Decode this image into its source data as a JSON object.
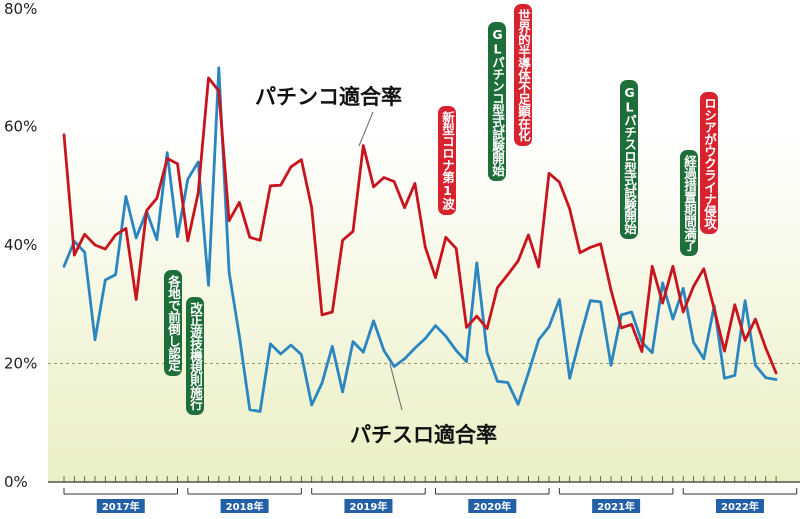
{
  "colors": {
    "pachinko": "#c8141e",
    "pachislot": "#2a86c0",
    "green_note": "#1e6e3a",
    "red_note": "#d8232f",
    "year_band": "#2460a8",
    "bg_top": "#ffffff",
    "bg_bottom": "#ecefc8"
  },
  "chart_data": {
    "type": "line",
    "ylim": [
      0,
      80
    ],
    "yticks": [
      "0%",
      "20%",
      "40%",
      "60%",
      "80%"
    ],
    "ytick_values": [
      0,
      20,
      40,
      60,
      80
    ],
    "reference_line": 20,
    "years": [
      "2017年",
      "2018年",
      "2019年",
      "2020年",
      "2021年",
      "2022年"
    ],
    "months_start": "2017-01",
    "series": [
      {
        "name": "パチンコ適合率",
        "color": "#c8141e",
        "values": [
          58.6,
          38.3,
          41.8,
          40.0,
          39.3,
          41.7,
          42.8,
          30.8,
          45.8,
          47.9,
          54.6,
          53.7,
          40.7,
          48.8,
          68.2,
          66.0,
          44.1,
          47.2,
          41.3,
          40.8,
          50.0,
          50.1,
          53.2,
          54.4,
          46.3,
          28.2,
          28.7,
          40.8,
          42.3,
          56.8,
          49.8,
          51.4,
          50.7,
          46.3,
          50.4,
          39.7,
          34.5,
          41.3,
          39.4,
          26.1,
          28.0,
          25.9,
          32.8,
          35.0,
          37.3,
          41.7,
          36.3,
          52.1,
          50.6,
          46.1,
          38.7,
          39.6,
          40.2,
          32.4,
          26.0,
          26.6,
          22.0,
          36.4,
          30.2,
          36.4,
          28.7,
          33.0,
          36.0,
          29.2,
          22.1,
          29.9,
          23.9,
          27.5,
          22.6,
          18.4
        ]
      },
      {
        "name": "パチスロ適合率",
        "color": "#2a86c0",
        "values": [
          36.4,
          40.6,
          38.8,
          24.0,
          34.1,
          35.0,
          48.2,
          41.2,
          45.7,
          40.9,
          55.6,
          41.4,
          51.1,
          54.0,
          33.2,
          69.9,
          35.4,
          24.6,
          12.2,
          11.9,
          23.3,
          21.6,
          23.1,
          21.5,
          13.0,
          16.7,
          22.9,
          15.2,
          23.7,
          21.9,
          27.2,
          22.2,
          19.5,
          20.8,
          22.6,
          24.2,
          26.4,
          24.6,
          22.2,
          20.3,
          37.0,
          21.8,
          17.0,
          16.8,
          13.1,
          18.4,
          24.0,
          26.2,
          30.8,
          17.5,
          24.3,
          30.6,
          30.4,
          19.7,
          28.2,
          28.7,
          23.6,
          21.8,
          33.6,
          27.5,
          32.7,
          23.6,
          20.8,
          29.7,
          17.5,
          18.0,
          30.6,
          19.7,
          17.6,
          17.3
        ]
      }
    ]
  },
  "series_labels": {
    "pachinko": "パチンコ適合率",
    "pachislot": "パチスロ適合率"
  },
  "annotations": [
    {
      "text": "各地で前倒し認定",
      "style": "green"
    },
    {
      "text": "改正遊技機規則施行",
      "style": "green"
    },
    {
      "text": "新型コロナ第1波",
      "style": "red"
    },
    {
      "text": "GLパチンコ型式試験開始",
      "style": "green"
    },
    {
      "text": "世界的半導体不足顕在化",
      "style": "red"
    },
    {
      "text": "GLパチスロ型式試験開始",
      "style": "green"
    },
    {
      "text": "経過措置期間満了",
      "style": "green"
    },
    {
      "text": "ロシアがウクライナ侵攻",
      "style": "red"
    }
  ]
}
